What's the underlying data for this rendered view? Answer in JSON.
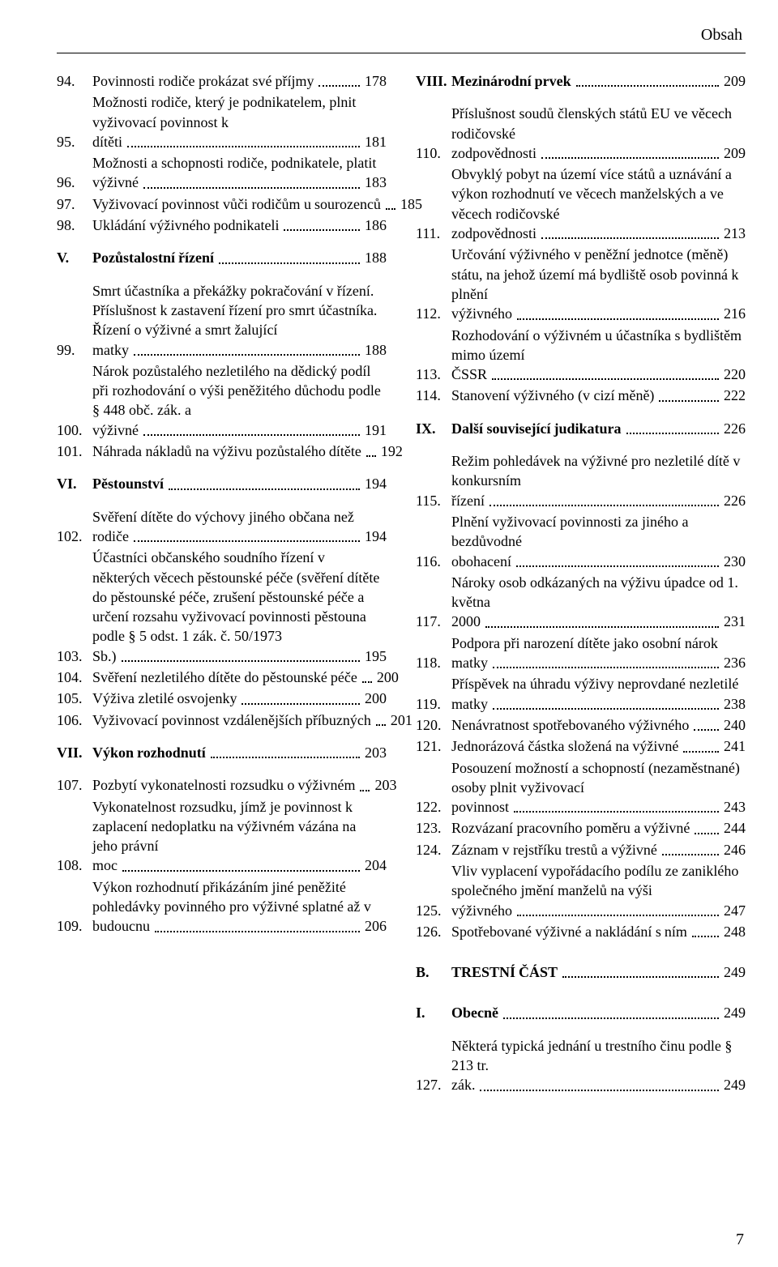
{
  "header": "Obsah",
  "footer_page": "7",
  "left": [
    {
      "n": "94.",
      "t": "Povinnosti rodiče prokázat své příjmy",
      "p": "178"
    },
    {
      "n": "95.",
      "t": "Možnosti rodiče, který je podnikatelem, plnit vyživovací povinnost k dítěti",
      "p": "181"
    },
    {
      "n": "96.",
      "t": "Možnosti a schopnosti rodiče, podnikatele, platit výživné",
      "p": "183"
    },
    {
      "n": "97.",
      "t": "Vyživovací povinnost vůči rodičům u sourozenců",
      "p": "185"
    },
    {
      "n": "98.",
      "t": "Ukládání výživného podnikateli",
      "p": "186"
    },
    {
      "spacer": true
    },
    {
      "n": "V.",
      "t": "Pozůstalostní řízení",
      "p": "188",
      "sect": true
    },
    {
      "spacer": true
    },
    {
      "n": "99.",
      "t": "Smrt účastníka a překážky pokračování v řízení. Příslušnost k zastavení řízení pro smrt účastníka. Řízení o výživné a smrt žalující matky",
      "p": "188"
    },
    {
      "n": "100.",
      "t": "Nárok pozůstalého nezletilého na dědický podíl při rozhodování o výši peněžitého důchodu podle § 448 obč. zák. a výživné",
      "p": "191"
    },
    {
      "n": "101.",
      "t": "Náhrada nákladů na výživu pozůstalého dítěte",
      "p": "192"
    },
    {
      "spacer": true
    },
    {
      "n": "VI.",
      "t": "Pěstounství",
      "p": "194",
      "sect": true
    },
    {
      "spacer": true
    },
    {
      "n": "102.",
      "t": "Svěření dítěte do výchovy jiného občana než rodiče",
      "p": "194"
    },
    {
      "n": "103.",
      "t": "Účastníci občanského soudního řízení v některých věcech pěstounské péče (svěření dítěte do pěstounské péče, zrušení pěstounské péče a určení rozsahu vyživovací povinnosti pěstouna podle § 5 odst. 1 zák. č. 50/1973 Sb.)",
      "p": "195"
    },
    {
      "n": "104.",
      "t": "Svěření nezletilého dítěte do pěstounské péče",
      "p": "200"
    },
    {
      "n": "105.",
      "t": "Výživa zletilé osvojenky",
      "p": "200"
    },
    {
      "n": "106.",
      "t": "Vyživovací povinnost vzdálenějších příbuzných",
      "p": "201"
    },
    {
      "spacer": true
    },
    {
      "n": "VII.",
      "t": "Výkon rozhodnutí",
      "p": "203",
      "sect": true
    },
    {
      "spacer": true
    },
    {
      "n": "107.",
      "t": "Pozbytí vykonatelnosti rozsudku o výživném",
      "p": "203"
    },
    {
      "n": "108.",
      "t": "Vykonatelnost rozsudku, jímž je povinnost k zaplacení nedoplatku na výživném vázána na jeho právní moc",
      "p": "204"
    },
    {
      "n": "109.",
      "t": "Výkon rozhodnutí přikázáním jiné peněžité pohledávky povinného pro výživné splatné až v budoucnu",
      "p": "206"
    }
  ],
  "right": [
    {
      "n": "VIII.",
      "t": "Mezinárodní prvek",
      "p": "209",
      "sect": true
    },
    {
      "spacer": true
    },
    {
      "n": "110.",
      "t": "Příslušnost soudů členských států EU ve věcech rodičovské zodpovědnosti",
      "p": "209"
    },
    {
      "n": "111.",
      "t": "Obvyklý pobyt na území více států a uznávání a výkon rozhodnutí ve věcech manželských a ve věcech rodičovské zodpovědnosti",
      "p": "213"
    },
    {
      "n": "112.",
      "t": "Určování výživného v peněžní jednotce (měně) státu, na jehož území má bydliště osob povinná k plnění výživného",
      "p": "216"
    },
    {
      "n": "113.",
      "t": "Rozhodování o výživném u účastníka s bydlištěm mimo území ČSSR",
      "p": "220"
    },
    {
      "n": "114.",
      "t": "Stanovení výživného (v cizí měně)",
      "p": "222"
    },
    {
      "spacer": true
    },
    {
      "n": "IX.",
      "t": "Další související judikatura",
      "p": "226",
      "sect": true
    },
    {
      "spacer": true
    },
    {
      "n": "115.",
      "t": "Režim pohledávek na výživné pro nezletilé dítě v konkursním řízení",
      "p": "226"
    },
    {
      "n": "116.",
      "t": "Plnění vyživovací povinnosti za jiného a bezdůvodné obohacení",
      "p": "230"
    },
    {
      "n": "117.",
      "t": "Nároky osob odkázaných na výživu úpadce od 1. května 2000",
      "p": "231"
    },
    {
      "n": "118.",
      "t": "Podpora při narození dítěte jako osobní nárok matky",
      "p": "236"
    },
    {
      "n": "119.",
      "t": "Příspěvek na úhradu výživy neprovdané nezletilé matky",
      "p": "238"
    },
    {
      "n": "120.",
      "t": "Nenávratnost spotřebovaného výživného",
      "p": "240"
    },
    {
      "n": "121.",
      "t": "Jednorázová částka složená na výživné",
      "p": "241"
    },
    {
      "n": "122.",
      "t": "Posouzení možností a schopností (nezaměstnané) osoby plnit vyživovací povinnost",
      "p": "243"
    },
    {
      "n": "123.",
      "t": "Rozvázaní pracovního poměru a výživné",
      "p": "244"
    },
    {
      "n": "124.",
      "t": "Záznam v rejstříku trestů a výživné",
      "p": "246"
    },
    {
      "n": "125.",
      "t": "Vliv vyplacení vypořádacího podílu ze zaniklého společného jmění manželů na výši výživného",
      "p": "247"
    },
    {
      "n": "126.",
      "t": "Spotřebované výživné a nakládání s ním",
      "p": "248"
    },
    {
      "spacer": true,
      "big": true
    },
    {
      "n": "B.",
      "t": "TRESTNÍ ČÁST",
      "p": "249",
      "sect": true
    },
    {
      "spacer": true,
      "big": true
    },
    {
      "n": "I.",
      "t": "Obecně",
      "p": "249",
      "sect": true
    },
    {
      "spacer": true
    },
    {
      "n": "127.",
      "t": "Některá typická jednání u trestního činu podle § 213 tr. zák.",
      "p": "249"
    }
  ]
}
